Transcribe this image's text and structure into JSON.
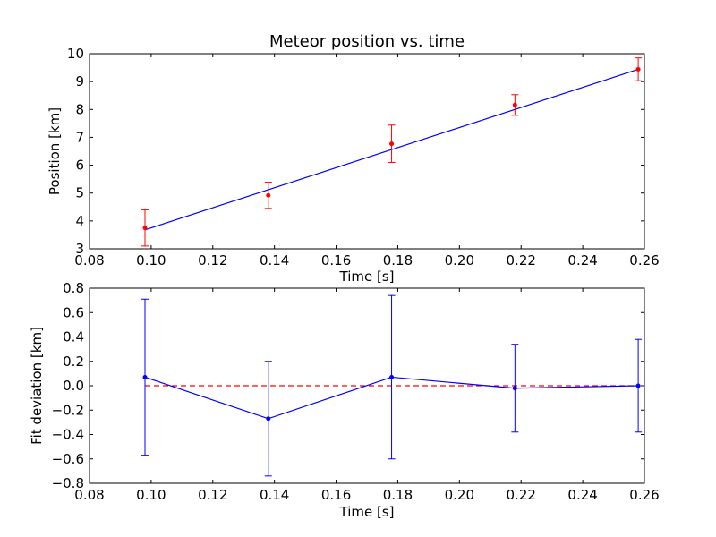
{
  "chart_data": [
    {
      "type": "scatter",
      "title": "Meteor position vs. time",
      "xlabel": "Time [s]",
      "ylabel": "Position [km]",
      "xlim": [
        0.08,
        0.26
      ],
      "ylim": [
        3,
        10
      ],
      "xticks": [
        0.08,
        0.1,
        0.12,
        0.14,
        0.16,
        0.18,
        0.2,
        0.22,
        0.24,
        0.26
      ],
      "xtick_labels": [
        "0.08",
        "0.10",
        "0.12",
        "0.14",
        "0.16",
        "0.18",
        "0.20",
        "0.22",
        "0.24",
        "0.26"
      ],
      "yticks": [
        3,
        4,
        5,
        6,
        7,
        8,
        9,
        10
      ],
      "ytick_labels": [
        "3",
        "4",
        "5",
        "6",
        "7",
        "8",
        "9",
        "10"
      ],
      "grid": false,
      "series": [
        {
          "kind": "errorbar-points",
          "color": "#ff0000",
          "x": [
            0.098,
            0.138,
            0.178,
            0.218,
            0.258
          ],
          "y": [
            3.75,
            4.92,
            6.77,
            8.16,
            9.44
          ],
          "err": [
            0.65,
            0.47,
            0.67,
            0.37,
            0.41
          ]
        },
        {
          "kind": "fit-line",
          "color": "#0000ff",
          "x": [
            0.098,
            0.258
          ],
          "y": [
            3.68,
            9.44
          ]
        }
      ]
    },
    {
      "type": "line",
      "title": "",
      "xlabel": "Time [s]",
      "ylabel": "Fit deviation [km]",
      "xlim": [
        0.08,
        0.26
      ],
      "ylim": [
        -0.8,
        0.8
      ],
      "xticks": [
        0.08,
        0.1,
        0.12,
        0.14,
        0.16,
        0.18,
        0.2,
        0.22,
        0.24,
        0.26
      ],
      "xtick_labels": [
        "0.08",
        "0.10",
        "0.12",
        "0.14",
        "0.16",
        "0.18",
        "0.20",
        "0.22",
        "0.24",
        "0.26"
      ],
      "yticks": [
        -0.8,
        -0.6,
        -0.4,
        -0.2,
        0.0,
        0.2,
        0.4,
        0.6,
        0.8
      ],
      "ytick_labels": [
        "−0.8",
        "−0.6",
        "−0.4",
        "−0.2",
        "0.0",
        "0.2",
        "0.4",
        "0.6",
        "0.8"
      ],
      "grid": false,
      "reference_line": {
        "y": 0,
        "color": "#ff0000",
        "style": "dashed"
      },
      "series": [
        {
          "kind": "errorbar-line",
          "color": "#0000ff",
          "x": [
            0.098,
            0.138,
            0.178,
            0.218,
            0.258
          ],
          "y": [
            0.07,
            -0.27,
            0.07,
            -0.02,
            0.0
          ],
          "err": [
            0.64,
            0.47,
            0.67,
            0.36,
            0.38
          ]
        }
      ]
    }
  ]
}
